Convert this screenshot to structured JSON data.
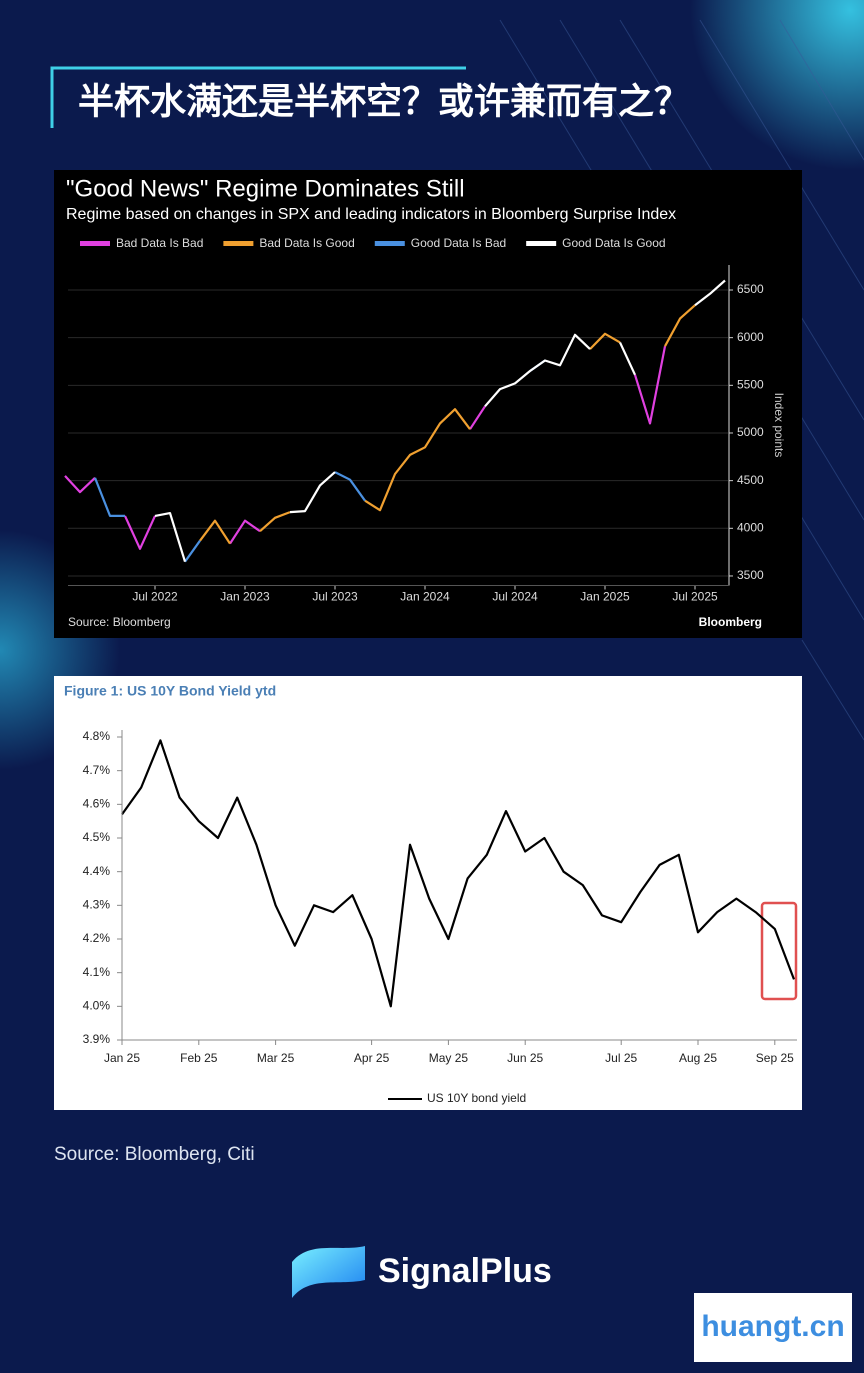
{
  "header": {
    "title": "半杯水满还是半杯空？或许兼而有之？"
  },
  "chart_data": [
    {
      "type": "line",
      "title": "\"Good News\" Regime Dominates Still",
      "subtitle": "Regime based on changes in SPX and leading indicators in Bloomberg Surprise Index",
      "y_label": "Index points",
      "source": "Source: Bloomberg",
      "brand": "Bloomberg",
      "x": [
        "2022-01",
        "2022-02",
        "2022-03",
        "2022-04",
        "2022-05",
        "2022-06",
        "2022-07",
        "2022-08",
        "2022-09",
        "2022-10",
        "2022-11",
        "2022-12",
        "2023-01",
        "2023-02",
        "2023-03",
        "2023-04",
        "2023-05",
        "2023-06",
        "2023-07",
        "2023-08",
        "2023-09",
        "2023-10",
        "2023-11",
        "2023-12",
        "2024-01",
        "2024-02",
        "2024-03",
        "2024-04",
        "2024-05",
        "2024-06",
        "2024-07",
        "2024-08",
        "2024-09",
        "2024-10",
        "2024-11",
        "2024-12",
        "2025-01",
        "2025-02",
        "2025-03",
        "2025-04",
        "2025-05",
        "2025-06",
        "2025-07",
        "2025-08",
        "2025-09"
      ],
      "xticks": [
        {
          "value": "2022-07",
          "label": "Jul 2022"
        },
        {
          "value": "2023-01",
          "label": "Jan 2023"
        },
        {
          "value": "2023-07",
          "label": "Jul 2023"
        },
        {
          "value": "2024-01",
          "label": "Jan 2024"
        },
        {
          "value": "2024-07",
          "label": "Jul 2024"
        },
        {
          "value": "2025-01",
          "label": "Jan 2025"
        },
        {
          "value": "2025-07",
          "label": "Jul 2025"
        }
      ],
      "series": [
        {
          "name": "Bad Data Is Bad",
          "color": "#e040e0",
          "values": [
            4550,
            4380,
            4530,
            null,
            4130,
            3785,
            4130,
            null,
            null,
            null,
            null,
            3840,
            4080,
            3970,
            null,
            null,
            null,
            null,
            null,
            null,
            null,
            null,
            null,
            null,
            null,
            null,
            null,
            5040,
            5280,
            null,
            null,
            null,
            null,
            null,
            null,
            null,
            null,
            null,
            5610,
            5100,
            5910,
            null,
            null,
            null,
            null
          ]
        },
        {
          "name": "Bad Data Is Good",
          "color": "#f0a030",
          "values": [
            null,
            null,
            null,
            null,
            null,
            null,
            null,
            null,
            null,
            3870,
            4080,
            3840,
            null,
            3970,
            4110,
            4170,
            null,
            null,
            null,
            null,
            4290,
            4190,
            4570,
            4770,
            4850,
            5100,
            5250,
            5040,
            null,
            null,
            null,
            null,
            null,
            null,
            null,
            5880,
            6040,
            5950,
            null,
            null,
            5910,
            6200,
            6340,
            null,
            null
          ]
        },
        {
          "name": "Good Data Is Bad",
          "color": "#4a90e0",
          "values": [
            null,
            null,
            4530,
            4130,
            4130,
            null,
            null,
            null,
            3650,
            3870,
            null,
            null,
            null,
            null,
            null,
            null,
            null,
            null,
            4590,
            4510,
            4290,
            null,
            null,
            null,
            null,
            null,
            null,
            null,
            null,
            null,
            null,
            5650,
            5760,
            null,
            null,
            null,
            null,
            null,
            null,
            null,
            null,
            null,
            null,
            null,
            null
          ]
        },
        {
          "name": "Good Data Is Good",
          "color": "#ffffff",
          "values": [
            null,
            null,
            null,
            null,
            null,
            null,
            4130,
            4160,
            3650,
            null,
            null,
            null,
            null,
            null,
            null,
            4170,
            4180,
            4450,
            4590,
            null,
            null,
            null,
            null,
            null,
            null,
            null,
            null,
            null,
            5280,
            5460,
            5520,
            5650,
            5760,
            5710,
            6030,
            5880,
            null,
            5950,
            5610,
            null,
            null,
            null,
            6340,
            6460,
            6600
          ]
        }
      ],
      "ylim": [
        3400,
        6800
      ],
      "yticks": [
        3500,
        4000,
        4500,
        5000,
        5500,
        6000,
        6500
      ],
      "grid": true,
      "legend": "top"
    },
    {
      "type": "line",
      "title": "Figure 1: US 10Y Bond Yield ytd",
      "categories": [
        "Jan 25",
        null,
        null,
        null,
        "Feb 25",
        null,
        null,
        null,
        "Mar 25",
        null,
        null,
        null,
        null,
        "Apr 25",
        null,
        null,
        null,
        "May 25",
        null,
        null,
        null,
        "Jun 25",
        null,
        null,
        null,
        null,
        "Jul 25",
        null,
        null,
        null,
        "Aug 25",
        null,
        null,
        null,
        "Sep 25",
        null
      ],
      "series": [
        {
          "name": "US 10Y bond yield",
          "color": "#000000",
          "values": [
            4.57,
            4.65,
            4.79,
            4.62,
            4.55,
            4.5,
            4.62,
            4.48,
            4.3,
            4.18,
            4.3,
            4.28,
            4.33,
            4.2,
            4.0,
            4.48,
            4.32,
            4.2,
            4.38,
            4.45,
            4.58,
            4.46,
            4.5,
            4.4,
            4.36,
            4.27,
            4.25,
            4.34,
            4.42,
            4.45,
            4.22,
            4.28,
            4.32,
            4.28,
            4.23,
            4.08
          ]
        }
      ],
      "ylim": [
        3.9,
        4.8
      ],
      "yticks": [
        {
          "value": 3.9,
          "label": "3.9%"
        },
        {
          "value": 4.0,
          "label": "4.0%"
        },
        {
          "value": 4.1,
          "label": "4.1%"
        },
        {
          "value": 4.2,
          "label": "4.2%"
        },
        {
          "value": 4.3,
          "label": "4.3%"
        },
        {
          "value": 4.4,
          "label": "4.4%"
        },
        {
          "value": 4.5,
          "label": "4.5%"
        },
        {
          "value": 4.6,
          "label": "4.6%"
        },
        {
          "value": 4.7,
          "label": "4.7%"
        },
        {
          "value": 4.8,
          "label": "4.8%"
        }
      ],
      "grid": false,
      "legend": "bottom"
    }
  ],
  "footer": {
    "source": "Source: Bloomberg, Citi",
    "brand": "SignalPlus",
    "watermark": "huangt.cn"
  }
}
